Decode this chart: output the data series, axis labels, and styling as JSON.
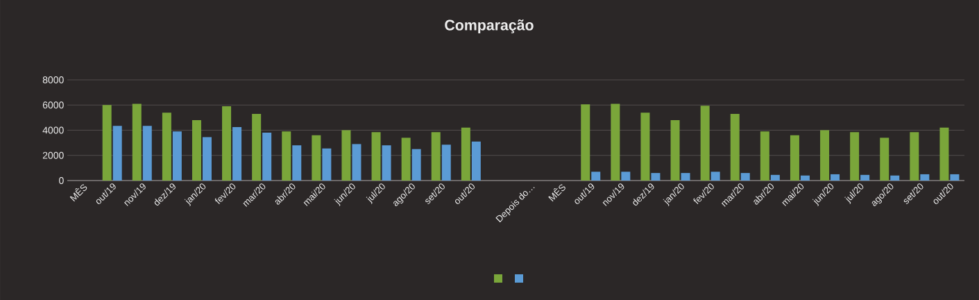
{
  "chart_data": {
    "type": "bar",
    "title": "Comparação",
    "categories": [
      "MÊS",
      "out/19",
      "nov/19",
      "dez/19",
      "jan/20",
      "fev/20",
      "mar/20",
      "abr/20",
      "mai/20",
      "jun/20",
      "jul/20",
      "ago/20",
      "set/20",
      "out/20",
      null,
      "Depois do…",
      "MÊS",
      "out/19",
      "nov/19",
      "dez/19",
      "jan/20",
      "fev/20",
      "mar/20",
      "abr/20",
      "mai/20",
      "jun/20",
      "jul/20",
      "ago/20",
      "set/20",
      "out/20"
    ],
    "series": [
      {
        "color": "#7aa63a",
        "values": [
          null,
          6000,
          6100,
          5400,
          4800,
          5900,
          5300,
          3900,
          3600,
          4000,
          3850,
          3400,
          3850,
          4200,
          null,
          null,
          null,
          6050,
          6100,
          5400,
          4800,
          5950,
          5300,
          3900,
          3600,
          4000,
          3850,
          3400,
          3850,
          4200
        ]
      },
      {
        "color": "#5b9bd5",
        "values": [
          null,
          4350,
          4350,
          3900,
          3450,
          4250,
          3800,
          2800,
          2550,
          2900,
          2800,
          2500,
          2850,
          3100,
          null,
          null,
          null,
          700,
          700,
          600,
          600,
          700,
          600,
          450,
          400,
          500,
          450,
          400,
          500,
          500
        ]
      }
    ],
    "ylim": [
      0,
      8000
    ],
    "yticks": [
      0,
      2000,
      4000,
      6000,
      8000
    ],
    "grid": "y"
  }
}
